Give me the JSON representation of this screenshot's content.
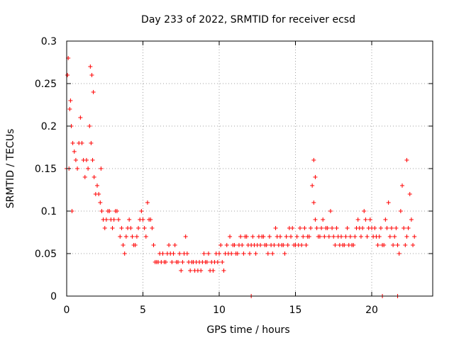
{
  "chart_data": {
    "type": "scatter",
    "title": "Day 233 of 2022, SRMTID for receiver ecsd",
    "xlabel": "GPS time / hours",
    "ylabel": "SRMTID / TECUs",
    "xlim": [
      0,
      24
    ],
    "ylim": [
      0,
      0.3
    ],
    "grid": true,
    "marker": "+",
    "color": "#ff0000",
    "xticks": [
      0,
      5,
      10,
      15,
      20
    ],
    "xtick_labels": [
      "0",
      "5",
      "10",
      "15",
      "20"
    ],
    "yticks": [
      0,
      0.05,
      0.1,
      0.15,
      0.2,
      0.25,
      0.3
    ],
    "ytick_labels": [
      "0",
      "0.05",
      "0.1",
      "0.15",
      "0.2",
      "0.25",
      "0.3"
    ],
    "series": [
      {
        "name": "SRMTID",
        "x": [
          0.0,
          0.1,
          0.2,
          0.3,
          0.4,
          0.5,
          0.6,
          0.7,
          0.8,
          0.9,
          1.0,
          1.1,
          1.2,
          1.3,
          1.4,
          1.5,
          1.6,
          1.7,
          1.8,
          1.9,
          2.0,
          2.1,
          2.2,
          2.3,
          2.4,
          2.5,
          2.6,
          2.7,
          2.8,
          2.9,
          3.0,
          3.1,
          3.2,
          3.3,
          3.4,
          3.5,
          3.6,
          3.7,
          3.8,
          3.9,
          4.0,
          4.1,
          4.2,
          4.3,
          4.4,
          4.5,
          4.6,
          4.7,
          4.8,
          4.9,
          5.0,
          5.1,
          5.2,
          5.3,
          5.4,
          5.5,
          5.6,
          5.7,
          5.8,
          5.9,
          6.0,
          6.1,
          6.2,
          6.3,
          6.4,
          6.5,
          6.6,
          6.7,
          6.8,
          6.9,
          7.0,
          7.1,
          7.2,
          7.3,
          7.4,
          7.5,
          7.6,
          7.7,
          7.8,
          7.9,
          8.0,
          8.1,
          8.2,
          8.3,
          8.4,
          8.5,
          8.6,
          8.7,
          8.8,
          8.9,
          9.0,
          9.1,
          9.2,
          9.3,
          9.4,
          9.5,
          9.6,
          9.7,
          9.8,
          9.9,
          10.0,
          10.1,
          10.2,
          10.3,
          10.4,
          10.5,
          10.6,
          10.7,
          10.8,
          10.9,
          11.0,
          11.1,
          11.2,
          11.3,
          11.4,
          11.5,
          11.6,
          11.7,
          11.8,
          11.9,
          12.0,
          12.1,
          12.2,
          12.3,
          12.4,
          12.5,
          12.6,
          12.7,
          12.8,
          12.9,
          13.0,
          13.1,
          13.2,
          13.3,
          13.4,
          13.5,
          13.6,
          13.7,
          13.8,
          13.9,
          14.0,
          14.1,
          14.2,
          14.3,
          14.4,
          14.5,
          14.6,
          14.7,
          14.8,
          14.9,
          15.0,
          15.1,
          15.2,
          15.3,
          15.4,
          15.5,
          15.6,
          15.7,
          15.8,
          15.9,
          16.0,
          16.1,
          16.2,
          16.3,
          16.4,
          16.5,
          16.6,
          16.7,
          16.8,
          16.9,
          17.0,
          17.1,
          17.2,
          17.3,
          17.4,
          17.5,
          17.6,
          17.7,
          17.8,
          17.9,
          18.0,
          18.1,
          18.2,
          18.3,
          18.4,
          18.5,
          18.6,
          18.7,
          18.8,
          18.9,
          19.0,
          19.1,
          19.2,
          19.3,
          19.4,
          19.5,
          19.6,
          19.7,
          19.8,
          19.9,
          20.0,
          20.1,
          20.2,
          20.3,
          20.4,
          20.5,
          20.6,
          20.7,
          20.8,
          20.9,
          21.0,
          21.1,
          21.2,
          21.3,
          21.4,
          21.5,
          21.6,
          21.7,
          21.8,
          21.9,
          22.0,
          22.1,
          22.2,
          22.3,
          22.4,
          22.5,
          22.6,
          22.7,
          22.8,
          0.05,
          0.15,
          0.25,
          0.35,
          1.55,
          1.65,
          1.75,
          2.25,
          12.1,
          20.7,
          21.7,
          16.2,
          16.3,
          22.3
        ],
        "y": [
          0.15,
          0.28,
          0.22,
          0.2,
          0.18,
          0.17,
          0.16,
          0.15,
          0.18,
          0.21,
          0.18,
          0.16,
          0.14,
          0.16,
          0.15,
          0.2,
          0.18,
          0.16,
          0.14,
          0.12,
          0.13,
          0.12,
          0.11,
          0.1,
          0.09,
          0.08,
          0.09,
          0.1,
          0.1,
          0.09,
          0.08,
          0.09,
          0.1,
          0.1,
          0.09,
          0.07,
          0.08,
          0.06,
          0.05,
          0.07,
          0.08,
          0.09,
          0.08,
          0.07,
          0.06,
          0.06,
          0.07,
          0.08,
          0.09,
          0.1,
          0.09,
          0.08,
          0.07,
          0.11,
          0.09,
          0.09,
          0.08,
          0.06,
          0.04,
          0.04,
          0.04,
          0.05,
          0.04,
          0.05,
          0.04,
          0.04,
          0.05,
          0.06,
          0.05,
          0.04,
          0.05,
          0.06,
          0.04,
          0.04,
          0.05,
          0.03,
          0.04,
          0.05,
          0.07,
          0.05,
          0.04,
          0.03,
          0.04,
          0.04,
          0.03,
          0.04,
          0.03,
          0.04,
          0.03,
          0.04,
          0.05,
          0.04,
          0.04,
          0.05,
          0.03,
          0.04,
          0.03,
          0.04,
          0.05,
          0.04,
          0.05,
          0.06,
          0.04,
          0.03,
          0.05,
          0.06,
          0.05,
          0.07,
          0.05,
          0.06,
          0.06,
          0.05,
          0.05,
          0.06,
          0.07,
          0.06,
          0.05,
          0.07,
          0.07,
          0.06,
          0.05,
          0.06,
          0.07,
          0.06,
          0.05,
          0.06,
          0.07,
          0.06,
          0.07,
          0.07,
          0.06,
          0.06,
          0.05,
          0.07,
          0.06,
          0.05,
          0.06,
          0.08,
          0.07,
          0.06,
          0.07,
          0.06,
          0.06,
          0.05,
          0.07,
          0.06,
          0.08,
          0.07,
          0.08,
          0.06,
          0.06,
          0.07,
          0.06,
          0.08,
          0.06,
          0.07,
          0.08,
          0.06,
          0.07,
          0.07,
          0.08,
          0.13,
          0.11,
          0.09,
          0.08,
          0.07,
          0.07,
          0.08,
          0.09,
          0.07,
          0.08,
          0.08,
          0.07,
          0.1,
          0.08,
          0.07,
          0.06,
          0.08,
          0.07,
          0.06,
          0.07,
          0.06,
          0.06,
          0.07,
          0.08,
          0.06,
          0.07,
          0.06,
          0.06,
          0.07,
          0.08,
          0.09,
          0.08,
          0.07,
          0.08,
          0.1,
          0.09,
          0.07,
          0.08,
          0.09,
          0.08,
          0.07,
          0.08,
          0.07,
          0.06,
          0.07,
          0.08,
          0.06,
          0.06,
          0.09,
          0.08,
          0.11,
          0.07,
          0.08,
          0.06,
          0.07,
          0.08,
          0.06,
          0.05,
          0.1,
          0.13,
          0.08,
          0.06,
          0.07,
          0.08,
          0.12,
          0.09,
          0.06,
          0.07,
          0.26,
          0.15,
          0.23,
          0.1,
          0.27,
          0.26,
          0.24,
          0.15,
          0.0,
          0.0,
          0.0,
          0.16,
          0.14,
          0.16
        ]
      }
    ]
  }
}
